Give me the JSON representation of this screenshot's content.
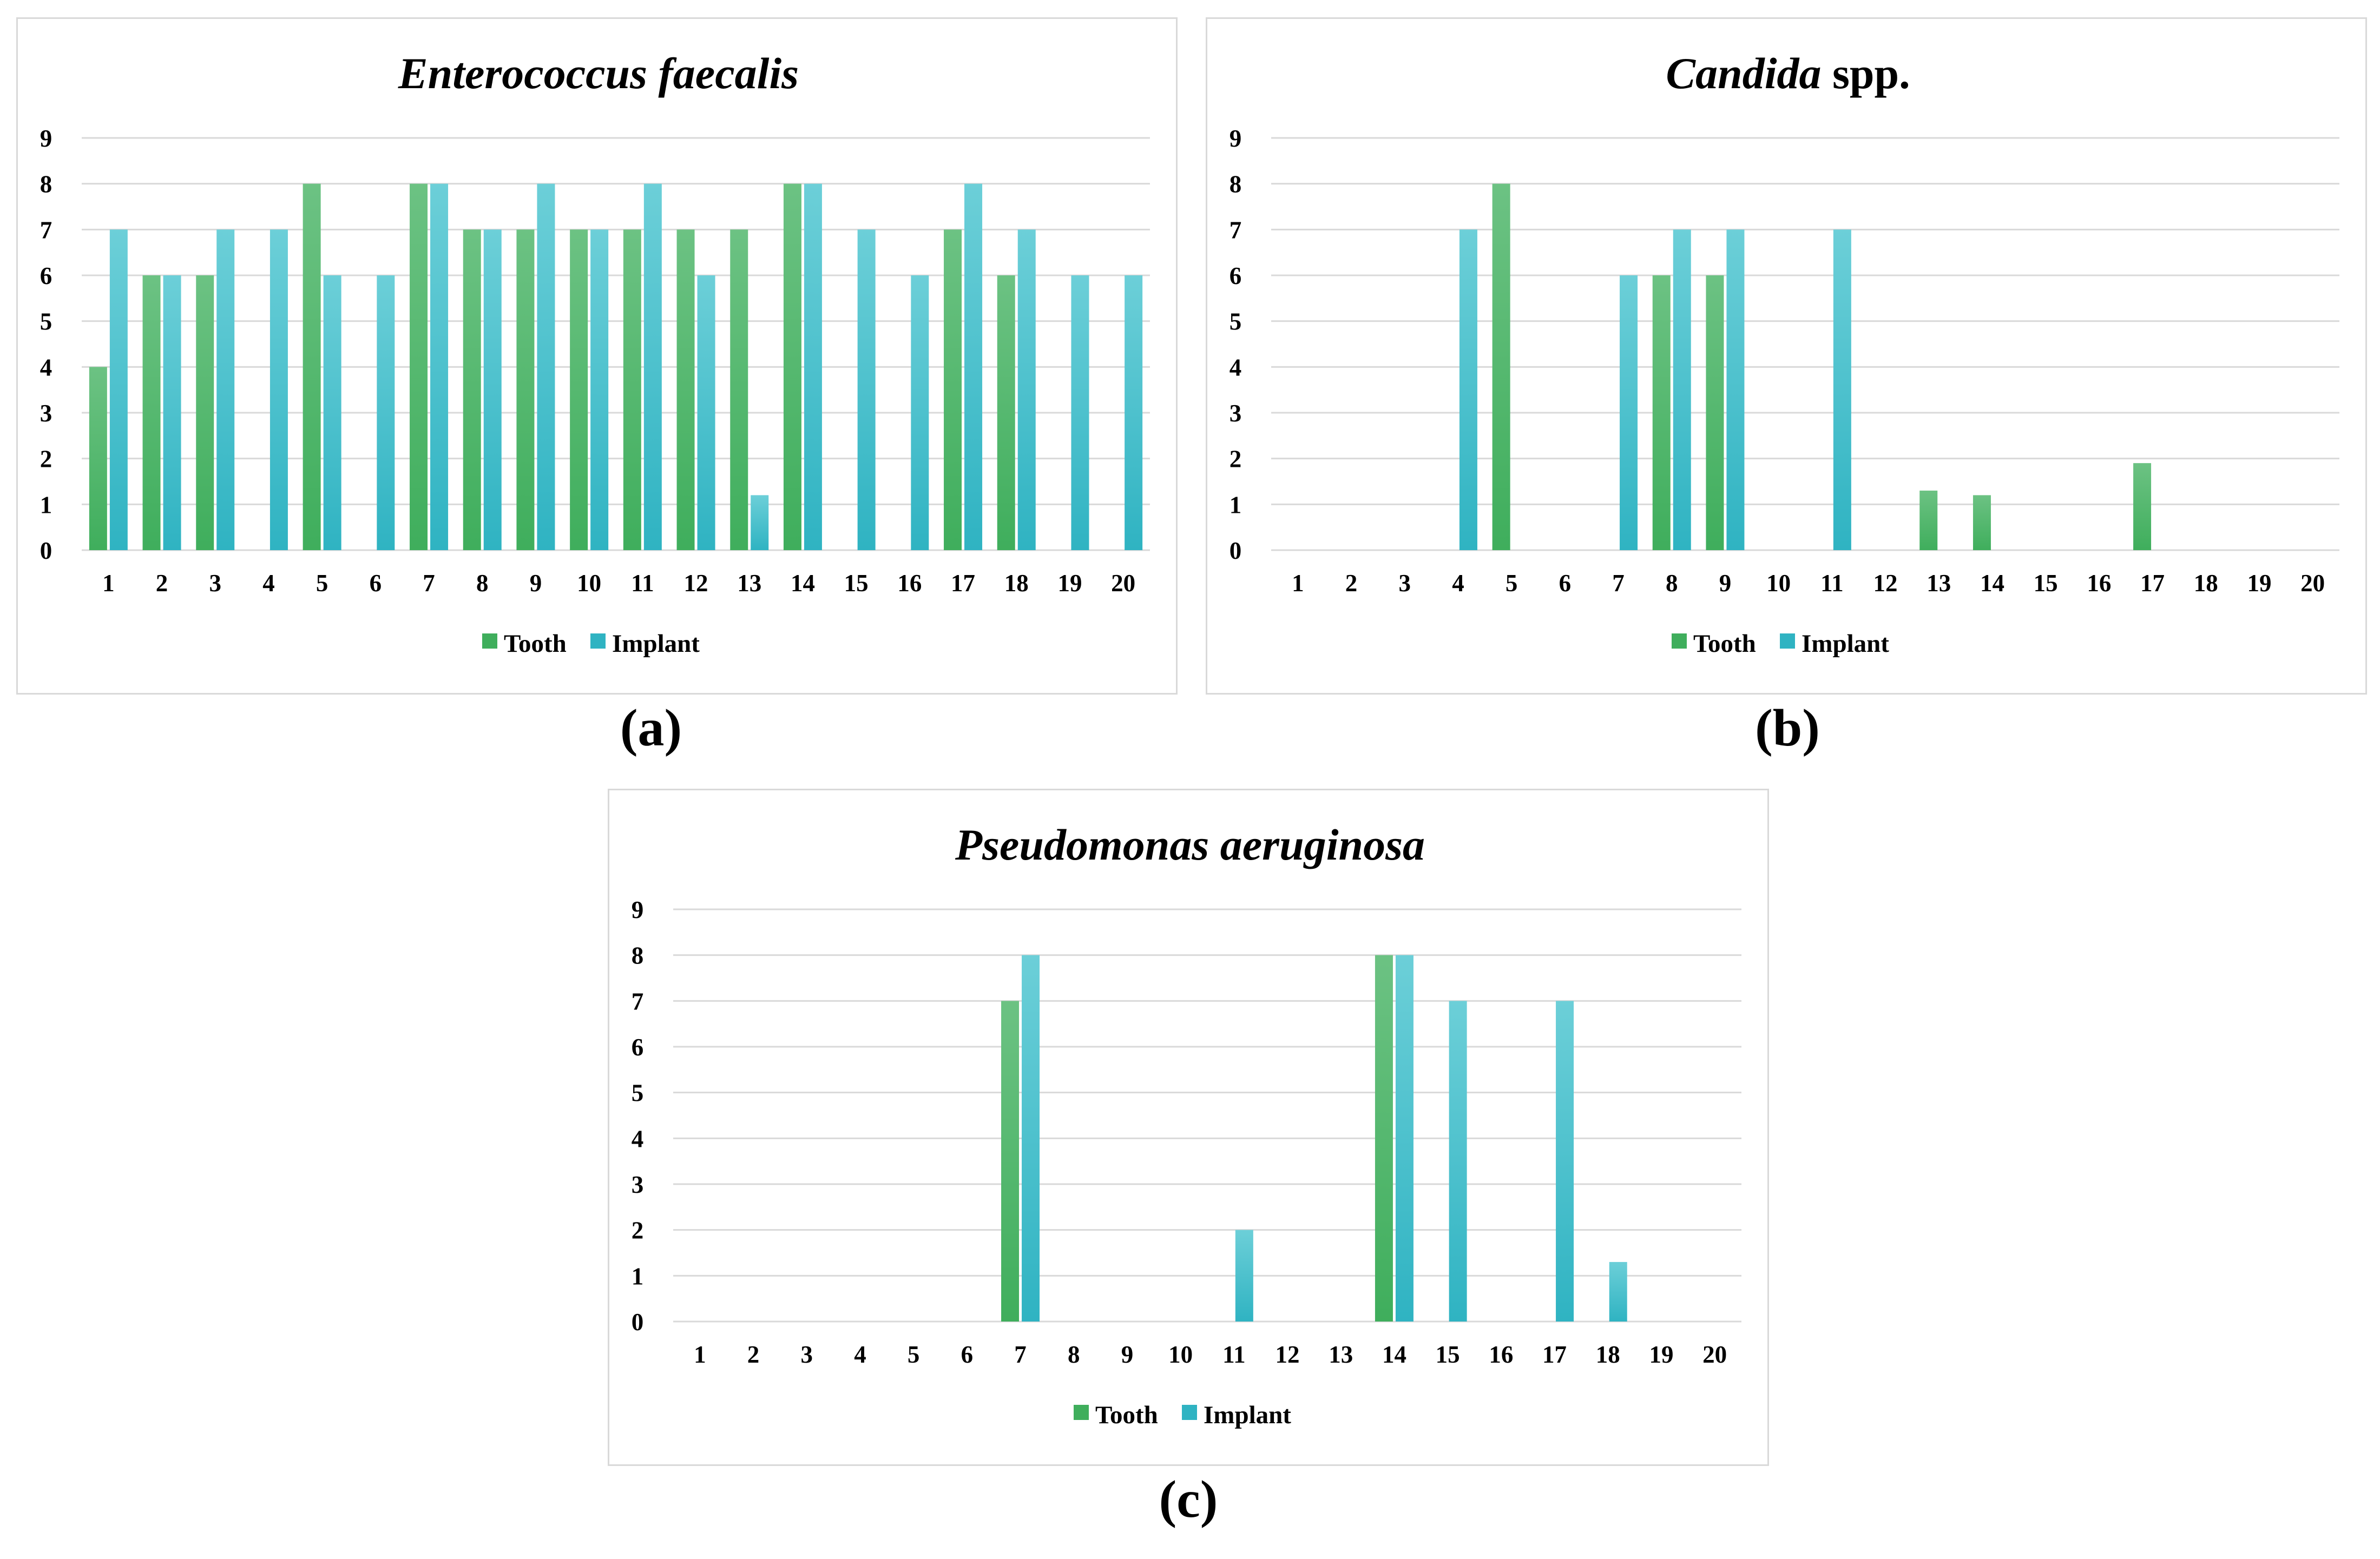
{
  "colors": {
    "tooth": "#3fae5c",
    "tooth_light": "#6cc283",
    "implant": "#2fb3c2",
    "implant_light": "#6ccfd8"
  },
  "chart_data": [
    {
      "id": "a",
      "type": "bar",
      "title": "Enterococcus faecalis",
      "title_suffix": "",
      "caption": "(a)",
      "categories": [
        "1",
        "2",
        "3",
        "4",
        "5",
        "6",
        "7",
        "8",
        "9",
        "10",
        "11",
        "12",
        "13",
        "14",
        "15",
        "16",
        "17",
        "18",
        "19",
        "20"
      ],
      "yticks": [
        "0",
        "1",
        "2",
        "3",
        "4",
        "5",
        "6",
        "7",
        "8",
        "9"
      ],
      "ylim": [
        0,
        9
      ],
      "legend": [
        "Tooth",
        "Implant"
      ],
      "series": [
        {
          "name": "Tooth",
          "values": [
            4,
            6,
            6,
            0,
            8,
            0,
            8,
            7,
            7,
            7,
            7,
            7,
            7,
            8,
            0,
            0,
            7,
            6,
            0,
            0
          ]
        },
        {
          "name": "Implant",
          "values": [
            7,
            6,
            7,
            7,
            6,
            6,
            8,
            7,
            8,
            7,
            8,
            6,
            1.2,
            8,
            7,
            6,
            8,
            7,
            6,
            6
          ]
        }
      ]
    },
    {
      "id": "b",
      "type": "bar",
      "title": "Candida",
      "title_suffix": " spp.",
      "caption": "(b)",
      "categories": [
        "1",
        "2",
        "3",
        "4",
        "5",
        "6",
        "7",
        "8",
        "9",
        "10",
        "11",
        "12",
        "13",
        "14",
        "15",
        "16",
        "17",
        "18",
        "19",
        "20"
      ],
      "yticks": [
        "0",
        "1",
        "2",
        "3",
        "4",
        "5",
        "6",
        "7",
        "8",
        "9"
      ],
      "ylim": [
        0,
        9
      ],
      "legend": [
        "Tooth",
        "Implant"
      ],
      "series": [
        {
          "name": "Tooth",
          "values": [
            0,
            0,
            0,
            0,
            8,
            0,
            0,
            6,
            6,
            0,
            0,
            0,
            1.3,
            1.2,
            0,
            0,
            1.9,
            0,
            0,
            0
          ]
        },
        {
          "name": "Implant",
          "values": [
            0,
            0,
            0,
            7,
            0,
            0,
            6,
            7,
            7,
            0,
            7,
            0,
            0,
            0,
            0,
            0,
            0,
            0,
            0,
            0
          ]
        }
      ]
    },
    {
      "id": "c",
      "type": "bar",
      "title": "Pseudomonas aeruginosa",
      "title_suffix": "",
      "caption": "(c)",
      "categories": [
        "1",
        "2",
        "3",
        "4",
        "5",
        "6",
        "7",
        "8",
        "9",
        "10",
        "11",
        "12",
        "13",
        "14",
        "15",
        "16",
        "17",
        "18",
        "19",
        "20"
      ],
      "yticks": [
        "0",
        "1",
        "2",
        "3",
        "4",
        "5",
        "6",
        "7",
        "8",
        "9"
      ],
      "ylim": [
        0,
        9
      ],
      "legend": [
        "Tooth",
        "Implant"
      ],
      "series": [
        {
          "name": "Tooth",
          "values": [
            0,
            0,
            0,
            0,
            0,
            0,
            7,
            0,
            0,
            0,
            0,
            0,
            0,
            8,
            0,
            0,
            0,
            0,
            0,
            0
          ]
        },
        {
          "name": "Implant",
          "values": [
            0,
            0,
            0,
            0,
            0,
            0,
            8,
            0,
            0,
            0,
            2,
            0,
            0,
            8,
            7,
            0,
            7,
            1.3,
            0,
            0
          ]
        }
      ]
    }
  ]
}
